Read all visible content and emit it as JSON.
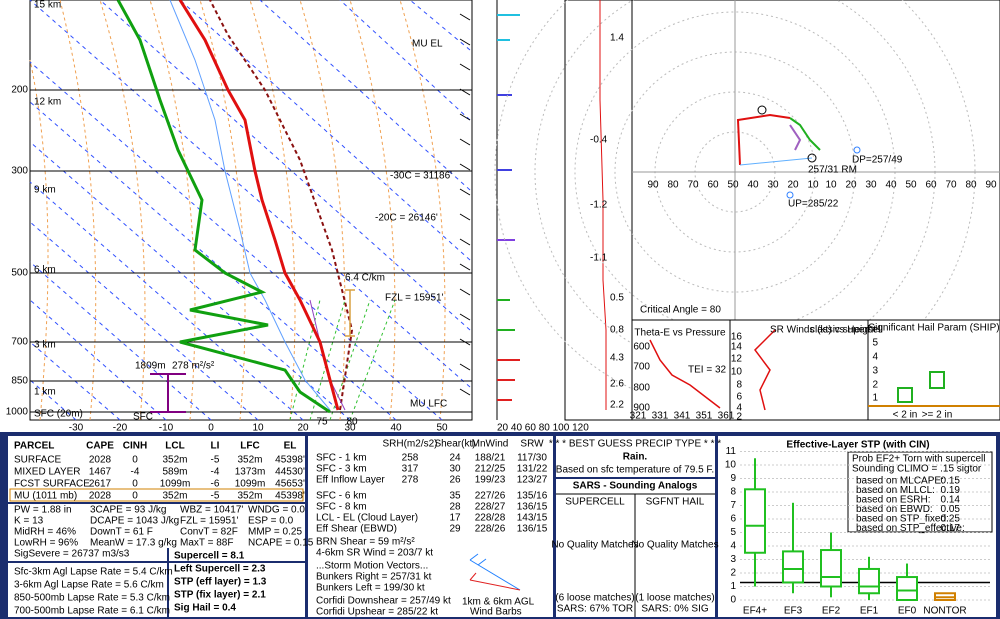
{
  "skewt": {
    "pressure_labels": [
      "200",
      "300",
      "500",
      "700",
      "850",
      "1000"
    ],
    "height_labels": [
      "15 km",
      "12 km",
      "9 km",
      "6 km",
      "3 km",
      "1 km",
      "SFC (20m)"
    ],
    "temp_labels": [
      "-30",
      "-20",
      "-10",
      "0",
      "10",
      "20",
      "30",
      "40",
      "50"
    ],
    "annotations": {
      "el": "MU EL",
      "t30": "-30C = 31186'",
      "t20": "-20C = 26146'",
      "fzl": "FZL = 15951'",
      "lapse": "6.4 C/km",
      "depth": "1809m",
      "srh": "278 m²/s²",
      "sfc": "SFC",
      "lfc": "MU LFC",
      "td": "75",
      "t": "80"
    }
  },
  "speed_axis": "20 40 60 80 100 120",
  "theta_labels": [
    "1.4",
    "-0.4",
    "-1.2",
    "-1.1",
    "0.5",
    "0.8",
    "4.3",
    "2.6",
    "2.2"
  ],
  "hodograph": {
    "x_labels": [
      "90",
      "80",
      "70",
      "60",
      "50",
      "40",
      "30",
      "20",
      "10",
      "10",
      "20",
      "30",
      "40",
      "50",
      "60",
      "70",
      "80",
      "90"
    ],
    "dp": "DP=257/49",
    "up": "UP=285/22",
    "rm": "257/31 RM",
    "critical": "Critical Angle = 80"
  },
  "insets": {
    "theta_e": {
      "title": "Theta-E vs Pressure",
      "tei": "TEI = 32",
      "p": [
        "600",
        "700",
        "800",
        "900"
      ],
      "x": [
        "321",
        "331",
        "341",
        "351",
        "361"
      ]
    },
    "srw": {
      "title": "SR Winds (kt) vs Height",
      "type": "classic supercell",
      "h": [
        "16",
        "14",
        "12",
        "10",
        "8",
        "6",
        "4",
        "2"
      ]
    },
    "ship": {
      "title": "Significant Hail Param (SHIP)",
      "ticks": [
        "5",
        "4",
        "3",
        "2",
        "1"
      ],
      "small": "< 2 in",
      "large": ">= 2 in"
    }
  },
  "parcel": {
    "headers": [
      "PARCEL",
      "CAPE",
      "CINH",
      "LCL",
      "LI",
      "LFC",
      "EL"
    ],
    "rows": [
      [
        "SURFACE",
        "2028",
        "0",
        "352m",
        "-5",
        "352m",
        "45398'"
      ],
      [
        "MIXED LAYER",
        "1467",
        "-4",
        "589m",
        "-4",
        "1373m",
        "44530'"
      ],
      [
        "FCST SURFACE",
        "2617",
        "0",
        "1099m",
        "-6",
        "1099m",
        "45653'"
      ],
      [
        "MU  (1011 mb)",
        "2028",
        "0",
        "352m",
        "-5",
        "352m",
        "45398'"
      ]
    ]
  },
  "indices": [
    [
      "PW = 1.88 in",
      "K = 13",
      "MidRH = 46%",
      "LowRH = 96%",
      "SigSevere = 26737 m3/s3"
    ],
    [
      "3CAPE = 93 J/kg",
      "DCAPE = 1043 J/kg",
      "DownT = 61 F",
      "MeanW = 17.3 g/kg"
    ],
    [
      "WBZ = 10417'",
      "FZL = 15951'",
      "ConvT = 82F",
      "MaxT = 88F"
    ],
    [
      "WNDG = 0.0",
      "ESP = 0.0",
      "MMP = 0.25",
      "NCAPE = 0.15"
    ]
  ],
  "lapse_rates": [
    "Sfc-3km Agl Lapse Rate = 5.4 C/km",
    "3-6km Agl Lapse Rate = 5.6 C/km",
    "850-500mb Lapse Rate = 5.3 C/km",
    "700-500mb Lapse Rate = 6.1 C/km"
  ],
  "composites": [
    "Supercell = 8.1",
    "Left Supercell = 2.3",
    "STP (eff layer) = 1.3",
    "STP (fix layer) = 2.1",
    "Sig Hail = 0.4"
  ],
  "kinematics": {
    "headers": [
      "SRH(m2/s2)",
      "Shear(kt)",
      "MnWind",
      "SRW"
    ],
    "rows": [
      {
        "label": "SFC - 1 km",
        "srh": "258",
        "shear": "24",
        "mnwind": "188/21",
        "srw": "117/30"
      },
      {
        "label": "SFC - 3 km",
        "srh": "317",
        "shear": "30",
        "mnwind": "212/25",
        "srw": "131/22"
      },
      {
        "label": "Eff Inflow Layer",
        "srh": "278",
        "shear": "26",
        "mnwind": "199/23",
        "srw": "123/27"
      },
      {
        "label": "SFC - 6 km",
        "shear": "35",
        "mnwind": "227/26",
        "srw": "135/16"
      },
      {
        "label": "SFC - 8 km",
        "shear": "28",
        "mnwind": "228/27",
        "srw": "136/15"
      },
      {
        "label": "LCL - EL (Cloud Layer)",
        "shear": "17",
        "mnwind": "228/28",
        "srw": "143/15"
      },
      {
        "label": "Eff Shear (EBWD)",
        "shear": "29",
        "mnwind": "228/26",
        "srw": "136/15"
      }
    ],
    "extra": [
      "BRN Shear = 59 m²/s²",
      "4-6km SR Wind = 203/7 kt",
      "...Storm Motion Vectors...",
      "Bunkers Right = 257/31 kt",
      "Bunkers Left = 199/30 kt",
      "Corfidi Downshear = 257/49 kt",
      "Corfidi Upshear = 285/22 kt"
    ],
    "barb_note": [
      "1km & 6km AGL",
      "Wind Barbs"
    ]
  },
  "precip": {
    "header": "* * * BEST GUESS PRECIP TYPE * * *",
    "type": "Rain.",
    "basis": "Based on sfc temperature of 79.5 F."
  },
  "sars": {
    "title": "SARS - Sounding Analogs",
    "supercell": {
      "head": "SUPERCELL",
      "match": "No Quality Matches",
      "loose": "(6 loose matches)",
      "result": "SARS: 67% TOR"
    },
    "hail": {
      "head": "SGFNT HAIL",
      "match": "No Quality Matches",
      "loose": "(1 loose matches)",
      "result": "SARS: 0% SIG"
    }
  },
  "stp": {
    "title": "Effective-Layer STP (with CIN)",
    "yticks": [
      "0",
      "1",
      "2",
      "3",
      "4",
      "5",
      "6",
      "7",
      "8",
      "9",
      "10",
      "11"
    ],
    "categories": [
      "EF4+",
      "EF3",
      "EF2",
      "EF1",
      "EF0",
      "NONTOR"
    ],
    "legend": {
      "head": [
        "Prob EF2+ Torn with supercell",
        "Sounding CLIMO = .15 sigtor"
      ],
      "rows": [
        [
          "based on MLCAPE:",
          "0.15"
        ],
        [
          "based on MLLCL:",
          "0.19"
        ],
        [
          "based on ESRH:",
          "0.14"
        ],
        [
          "based on EBWD:",
          "0.05"
        ],
        [
          "based on STP_fixed:",
          "0.25"
        ],
        [
          "based on STP_effective:",
          "0.17"
        ]
      ]
    }
  }
}
